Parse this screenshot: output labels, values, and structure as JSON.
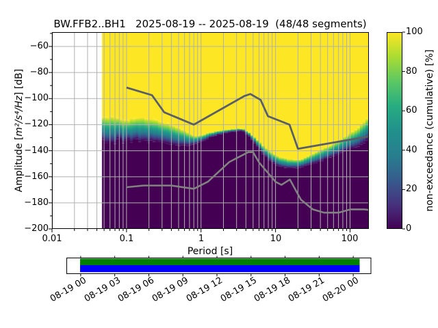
{
  "chart_data": [
    {
      "type": "heatmap",
      "title": "BW.FFB2..BH1   2025-08-19 -- 2025-08-19  (48/48 segments)",
      "station_id": "BW.FFB2..BH1",
      "date_range": "2025-08-19 -- 2025-08-19",
      "segments": "48/48",
      "xlabel": "Period [s]",
      "ylabel_parts": {
        "prefix": "Amplitude [",
        "math": "m²/s⁴/Hz",
        "suffix": "] [dB]"
      },
      "xscale": "log",
      "xlim": [
        0.01,
        179
      ],
      "ylim": [
        -200,
        -49
      ],
      "xticks": {
        "labels": [
          "0.01",
          "0.1",
          "1",
          "10",
          "100"
        ],
        "values": [
          0.01,
          0.1,
          1,
          10,
          100
        ]
      },
      "yticks": {
        "labels": [
          "−60",
          "−80",
          "−100",
          "−120",
          "−140",
          "−160",
          "−180",
          "−200"
        ],
        "values": [
          -60,
          -80,
          -100,
          -120,
          -140,
          -160,
          -180,
          -200
        ]
      },
      "grid": {
        "on": true,
        "color": "#b0b0b0"
      },
      "colormap": {
        "name": "viridis",
        "stops": [
          [
            0.0,
            "#440154"
          ],
          [
            0.125,
            "#46327e"
          ],
          [
            0.25,
            "#365c8d"
          ],
          [
            0.375,
            "#277f8e"
          ],
          [
            0.5,
            "#21918c"
          ],
          [
            0.625,
            "#27ad81"
          ],
          [
            0.75,
            "#5cc863"
          ],
          [
            0.875,
            "#aadc32"
          ],
          [
            1.0,
            "#fde725"
          ]
        ]
      },
      "colorbar": {
        "label": "non-exceedance (cumulative) [%]",
        "ticks": {
          "labels": [
            "0",
            "20",
            "40",
            "60",
            "80",
            "100"
          ],
          "values": [
            0,
            20,
            40,
            60,
            80,
            100
          ]
        }
      },
      "data_start_period_s": 0.047,
      "period_bin_decades": 0.0376,
      "cumulative_band_p_top_bot_dB": [
        [
          0.047,
          -113.0,
          -130.0
        ],
        [
          0.055,
          -115.5,
          -133.5
        ],
        [
          0.068,
          -114.5,
          -132.5
        ],
        [
          0.085,
          -115.5,
          -131.5
        ],
        [
          0.105,
          -116.0,
          -132.0
        ],
        [
          0.14,
          -114.8,
          -131.2
        ],
        [
          0.19,
          -115.5,
          -132.0
        ],
        [
          0.26,
          -116.8,
          -133.2
        ],
        [
          0.36,
          -119.2,
          -134.6
        ],
        [
          0.5,
          -122.5,
          -136.2
        ],
        [
          0.66,
          -125.8,
          -136.0
        ],
        [
          0.82,
          -128.8,
          -135.2
        ],
        [
          1.0,
          -127.8,
          -132.8
        ],
        [
          1.4,
          -125.6,
          -129.2
        ],
        [
          2.0,
          -124.2,
          -126.6
        ],
        [
          3.0,
          -123.2,
          -125.0
        ],
        [
          3.6,
          -123.0,
          -124.6
        ],
        [
          4.5,
          -126.0,
          -129.2
        ],
        [
          6.0,
          -132.5,
          -138.5
        ],
        [
          8.0,
          -140.0,
          -147.0
        ],
        [
          11.0,
          -144.5,
          -152.0
        ],
        [
          15.0,
          -146.5,
          -153.5
        ],
        [
          21.0,
          -146.8,
          -153.2
        ],
        [
          28.0,
          -144.0,
          -151.0
        ],
        [
          40.0,
          -139.5,
          -148.0
        ],
        [
          60.0,
          -134.5,
          -144.0
        ],
        [
          90.0,
          -128.5,
          -140.0
        ],
        [
          130.0,
          -122.0,
          -136.5
        ],
        [
          179.0,
          -113.5,
          -131.5
        ]
      ],
      "noise_models": {
        "high": {
          "name": "NHNM",
          "color": "#5a5e66",
          "points": [
            [
              0.1,
              -91.5
            ],
            [
              0.22,
              -97.4
            ],
            [
              0.32,
              -110.5
            ],
            [
              0.8,
              -120.0
            ],
            [
              3.8,
              -98.1
            ],
            [
              4.6,
              -96.5
            ],
            [
              6.3,
              -101.0
            ],
            [
              7.9,
              -113.5
            ],
            [
              15.4,
              -120.0
            ],
            [
              20.0,
              -138.5
            ],
            [
              179.0,
              -129.0
            ]
          ]
        },
        "low": {
          "name": "NLNM",
          "color": "#828282",
          "points": [
            [
              0.1,
              -168.0
            ],
            [
              0.17,
              -166.7
            ],
            [
              0.4,
              -166.7
            ],
            [
              0.8,
              -169.2
            ],
            [
              1.24,
              -163.7
            ],
            [
              2.4,
              -148.6
            ],
            [
              4.3,
              -141.1
            ],
            [
              5.0,
              -141.1
            ],
            [
              6.0,
              -149.0
            ],
            [
              10.0,
              -163.8
            ],
            [
              12.0,
              -166.2
            ],
            [
              15.6,
              -162.1
            ],
            [
              21.9,
              -177.5
            ],
            [
              31.6,
              -185.0
            ],
            [
              45.0,
              -187.5
            ],
            [
              70.0,
              -187.5
            ],
            [
              101.0,
              -185.0
            ],
            [
              154.0,
              -185.0
            ],
            [
              179.0,
              -185.4
            ]
          ]
        }
      }
    },
    {
      "type": "coverage-timeline",
      "tick_labels": [
        "08-19 00",
        "08-19 03",
        "08-19 06",
        "08-19 09",
        "08-19 12",
        "08-19 15",
        "08-19 18",
        "08-19 21",
        "08-20 00"
      ],
      "bars": [
        {
          "name": "availability-bar",
          "color": "#008000"
        },
        {
          "name": "used-data-bar",
          "color": "#0000ff"
        }
      ]
    }
  ]
}
